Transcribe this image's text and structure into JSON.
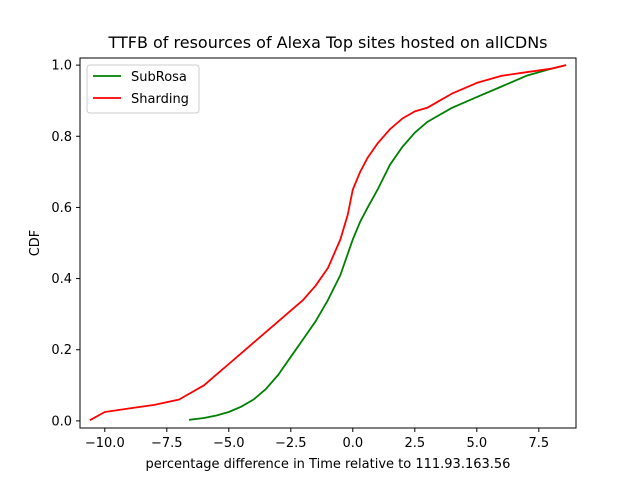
{
  "chart_data": {
    "type": "line",
    "title": "TTFB of resources of Alexa Top sites hosted on allCDNs",
    "xlabel": "percentage difference in Time relative to 111.93.163.56",
    "ylabel": "CDF",
    "xlim": [
      -11.0,
      9.0
    ],
    "ylim": [
      -0.02,
      1.02
    ],
    "xticks": [
      -10.0,
      -7.5,
      -5.0,
      -2.5,
      0.0,
      2.5,
      5.0,
      7.5
    ],
    "xtick_labels": [
      "−10.0",
      "−7.5",
      "−5.0",
      "−2.5",
      "0.0",
      "2.5",
      "5.0",
      "7.5"
    ],
    "yticks": [
      0.0,
      0.2,
      0.4,
      0.6,
      0.8,
      1.0
    ],
    "ytick_labels": [
      "0.0",
      "0.2",
      "0.4",
      "0.6",
      "0.8",
      "1.0"
    ],
    "grid": false,
    "legend_position": "upper-left",
    "series": [
      {
        "name": "SubRosa",
        "color": "#008000",
        "x": [
          -6.6,
          -6.0,
          -5.5,
          -5.0,
          -4.5,
          -4.0,
          -3.5,
          -3.0,
          -2.5,
          -2.0,
          -1.5,
          -1.0,
          -0.5,
          -0.2,
          0.0,
          0.3,
          0.6,
          1.0,
          1.5,
          2.0,
          2.5,
          3.0,
          3.5,
          4.0,
          5.0,
          6.0,
          7.0,
          8.0,
          8.6
        ],
        "y": [
          0.003,
          0.008,
          0.015,
          0.025,
          0.04,
          0.06,
          0.09,
          0.13,
          0.18,
          0.23,
          0.28,
          0.34,
          0.41,
          0.47,
          0.51,
          0.56,
          0.6,
          0.65,
          0.72,
          0.77,
          0.81,
          0.84,
          0.86,
          0.88,
          0.91,
          0.94,
          0.97,
          0.99,
          1.0
        ]
      },
      {
        "name": "Sharding",
        "color": "#ff0000",
        "x": [
          -10.6,
          -10.0,
          -9.0,
          -8.0,
          -7.0,
          -6.5,
          -6.0,
          -5.5,
          -5.0,
          -4.5,
          -4.0,
          -3.5,
          -3.0,
          -2.5,
          -2.0,
          -1.5,
          -1.0,
          -0.5,
          -0.2,
          0.0,
          0.3,
          0.6,
          1.0,
          1.5,
          2.0,
          2.5,
          3.0,
          3.5,
          4.0,
          5.0,
          6.0,
          7.0,
          8.0,
          8.6
        ],
        "y": [
          0.002,
          0.025,
          0.035,
          0.045,
          0.06,
          0.08,
          0.1,
          0.13,
          0.16,
          0.19,
          0.22,
          0.25,
          0.28,
          0.31,
          0.34,
          0.38,
          0.43,
          0.51,
          0.58,
          0.65,
          0.7,
          0.74,
          0.78,
          0.82,
          0.85,
          0.87,
          0.88,
          0.9,
          0.92,
          0.95,
          0.97,
          0.98,
          0.99,
          1.0
        ]
      }
    ]
  }
}
